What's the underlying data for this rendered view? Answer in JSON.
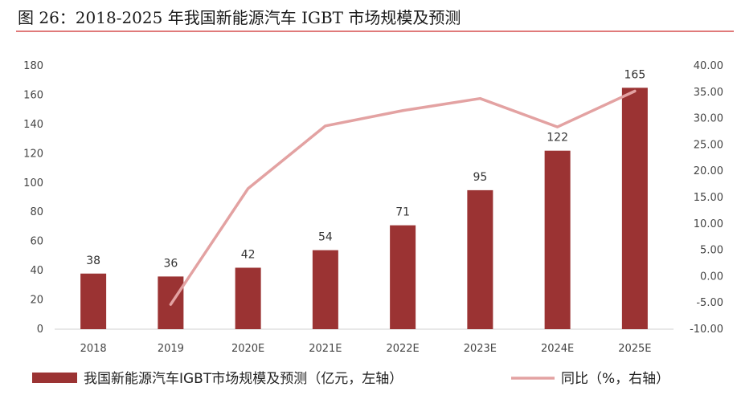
{
  "title": "图 26：2018-2025 年我国新能源汽车 IGBT 市场规模及预测",
  "chart_data": {
    "type": "bar",
    "categories": [
      "2018",
      "2019",
      "2020E",
      "2021E",
      "2022E",
      "2023E",
      "2024E",
      "2025E"
    ],
    "series": [
      {
        "name": "我国新能源汽车IGBT市场规模及预测（亿元，左轴）",
        "type": "bar",
        "axis": "left",
        "color": "#9b3333",
        "values": [
          38,
          36,
          42,
          54,
          71,
          95,
          122,
          165
        ],
        "labels": [
          "38",
          "36",
          "42",
          "54",
          "71",
          "95",
          "122",
          "165"
        ]
      },
      {
        "name": "同比（%，右轴）",
        "type": "line",
        "axis": "right",
        "color": "#e3a2a2",
        "values": [
          null,
          -5.3,
          16.7,
          28.6,
          31.5,
          33.8,
          28.4,
          35.2
        ]
      }
    ],
    "yleft": {
      "min": 0,
      "max": 180,
      "ticks": [
        "0",
        "20",
        "40",
        "60",
        "80",
        "100",
        "120",
        "140",
        "160",
        "180"
      ]
    },
    "yright": {
      "min": -10,
      "max": 40,
      "ticks": [
        "-10.00",
        "-5.00",
        "0.00",
        "5.00",
        "10.00",
        "15.00",
        "20.00",
        "25.00",
        "30.00",
        "35.00",
        "40.00"
      ]
    },
    "grid": false,
    "legend_position": "bottom"
  }
}
